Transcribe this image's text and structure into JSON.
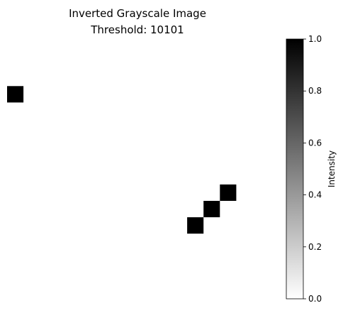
{
  "chart_data": {
    "type": "heatmap",
    "title_line1": "Inverted Grayscale Image",
    "title_line2": "Threshold: 10101",
    "grid_size": 17,
    "cells": [
      {
        "row": 3,
        "col": 0,
        "value": 1.0
      },
      {
        "row": 9,
        "col": 13,
        "value": 1.0
      },
      {
        "row": 10,
        "col": 12,
        "value": 1.0
      },
      {
        "row": 11,
        "col": 11,
        "value": 1.0
      }
    ],
    "colorbar": {
      "label": "Intensity",
      "range": [
        0.0,
        1.0
      ],
      "ticks": [
        "0.0",
        "0.2",
        "0.4",
        "0.6",
        "0.8",
        "1.0"
      ],
      "colormap": "gray_r"
    },
    "axes_visible": false
  }
}
